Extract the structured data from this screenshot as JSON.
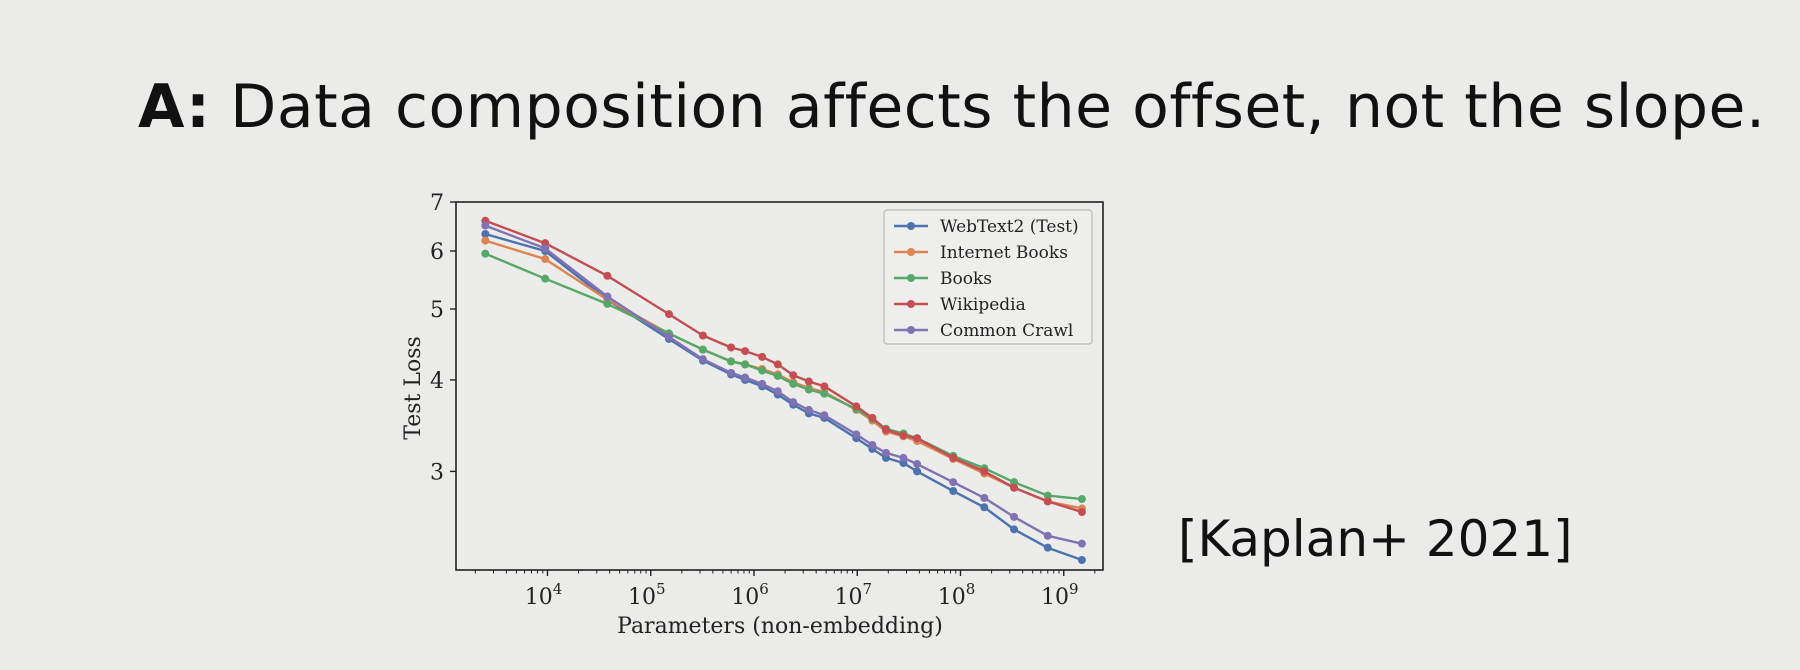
{
  "slide": {
    "title_prefix": "A:",
    "title_text": "Data composition affects the offset, not the slope.",
    "citation": "[Kaplan+ 2021]"
  },
  "chart_data": {
    "type": "line",
    "title": "",
    "xlabel": "Parameters (non-embedding)",
    "ylabel": "Test Loss",
    "xscale": "log",
    "yscale": "log",
    "xlim": [
      1300,
      2400000000
    ],
    "ylim": [
      2.2,
      7.0
    ],
    "x_ticks": [
      {
        "value": 10000,
        "base": "10",
        "exp": "4"
      },
      {
        "value": 100000,
        "base": "10",
        "exp": "5"
      },
      {
        "value": 1000000,
        "base": "10",
        "exp": "6"
      },
      {
        "value": 10000000,
        "base": "10",
        "exp": "7"
      },
      {
        "value": 100000000,
        "base": "10",
        "exp": "8"
      },
      {
        "value": 1000000000,
        "base": "10",
        "exp": "9"
      }
    ],
    "y_ticks": [
      {
        "value": 3,
        "label": "3"
      },
      {
        "value": 4,
        "label": "4"
      },
      {
        "value": 5,
        "label": "5"
      },
      {
        "value": 6,
        "label": "6"
      },
      {
        "value": 7,
        "label": "7"
      }
    ],
    "legend_position": "top-right",
    "series": [
      {
        "name": "WebText2 (Test)",
        "color": "#4c72b0",
        "x": [
          2500,
          9500,
          38000,
          150000,
          320000,
          600000,
          820000,
          1200000,
          1700000,
          2400000,
          3400000,
          4800000,
          9800000,
          14000000,
          19000000,
          28000000,
          38000000,
          85000000,
          170000000,
          330000000,
          700000000,
          1500000000
        ],
        "y": [
          6.33,
          6.0,
          5.15,
          4.55,
          4.25,
          4.07,
          4.0,
          3.92,
          3.82,
          3.7,
          3.6,
          3.55,
          3.33,
          3.22,
          3.13,
          3.08,
          3.0,
          2.82,
          2.68,
          2.5,
          2.36,
          2.27
        ]
      },
      {
        "name": "Internet Books",
        "color": "#dd8452",
        "x": [
          2500,
          9500,
          38000,
          150000,
          320000,
          600000,
          820000,
          1200000,
          1700000,
          2400000,
          3400000,
          4800000,
          9800000,
          14000000,
          19000000,
          28000000,
          38000000,
          85000000,
          170000000,
          330000000,
          700000000,
          1500000000
        ],
        "y": [
          6.2,
          5.85,
          5.15,
          4.63,
          4.4,
          4.24,
          4.2,
          4.14,
          4.07,
          3.97,
          3.9,
          3.85,
          3.64,
          3.52,
          3.4,
          3.35,
          3.3,
          3.12,
          2.98,
          2.85,
          2.73,
          2.67
        ]
      },
      {
        "name": "Books",
        "color": "#55a868",
        "x": [
          2500,
          9500,
          38000,
          150000,
          320000,
          600000,
          820000,
          1200000,
          1700000,
          2400000,
          3400000,
          4800000,
          9800000,
          14000000,
          19000000,
          28000000,
          38000000,
          85000000,
          170000000,
          330000000,
          700000000,
          1500000000
        ],
        "y": [
          5.95,
          5.5,
          5.08,
          4.63,
          4.4,
          4.24,
          4.2,
          4.12,
          4.05,
          3.95,
          3.88,
          3.83,
          3.65,
          3.54,
          3.43,
          3.38,
          3.33,
          3.15,
          3.03,
          2.9,
          2.78,
          2.75
        ]
      },
      {
        "name": "Wikipedia",
        "color": "#c44e52",
        "x": [
          2500,
          9500,
          38000,
          150000,
          320000,
          600000,
          820000,
          1200000,
          1700000,
          2400000,
          3400000,
          4800000,
          9800000,
          14000000,
          19000000,
          28000000,
          38000000,
          85000000,
          170000000,
          330000000,
          700000000,
          1500000000
        ],
        "y": [
          6.6,
          6.15,
          5.55,
          4.92,
          4.6,
          4.43,
          4.38,
          4.3,
          4.2,
          4.06,
          3.98,
          3.92,
          3.68,
          3.55,
          3.42,
          3.36,
          3.33,
          3.13,
          3.0,
          2.85,
          2.73,
          2.64
        ]
      },
      {
        "name": "Common Crawl",
        "color": "#8172b3",
        "x": [
          2500,
          9500,
          38000,
          150000,
          320000,
          600000,
          820000,
          1200000,
          1700000,
          2400000,
          3400000,
          4800000,
          9800000,
          14000000,
          19000000,
          28000000,
          38000000,
          85000000,
          170000000,
          330000000,
          700000000,
          1500000000
        ],
        "y": [
          6.5,
          6.05,
          5.2,
          4.58,
          4.27,
          4.09,
          4.03,
          3.95,
          3.86,
          3.73,
          3.64,
          3.58,
          3.37,
          3.26,
          3.18,
          3.13,
          3.07,
          2.9,
          2.76,
          2.6,
          2.45,
          2.39
        ]
      }
    ]
  }
}
